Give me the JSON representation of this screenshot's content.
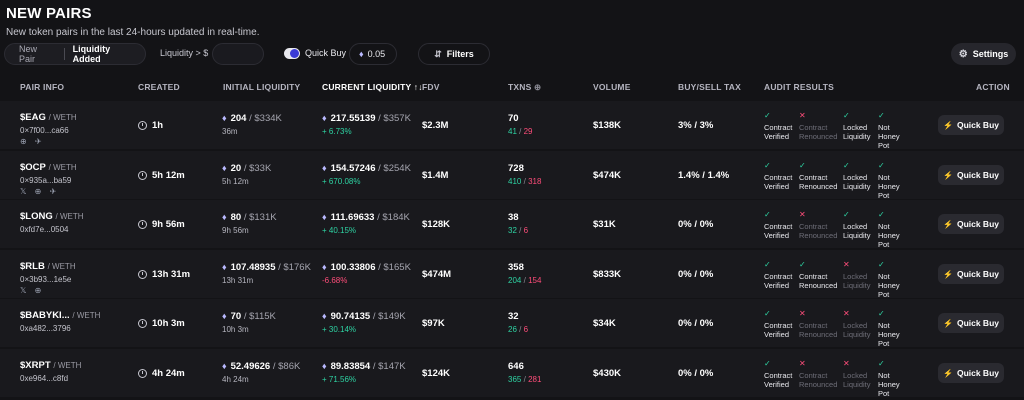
{
  "header": {
    "title": "NEW PAIRS",
    "subtitle": "New token pairs in the last 24-hours updated in real-time."
  },
  "toolbar": {
    "tab_new_pair": "New Pair",
    "tab_liquidity_added": "Liquidity Added",
    "liquidity_label": "Liquidity > $",
    "liquidity_value": "",
    "quick_buy_label": "Quick Buy",
    "quick_buy_amount": "0.05",
    "filters_label": "Filters",
    "settings_label": "Settings"
  },
  "columns": {
    "pair_info": "PAIR INFO",
    "created": "CREATED",
    "initial_liquidity": "INITIAL LIQUIDITY",
    "current_liquidity": "CURRENT LIQUIDITY",
    "fdv": "FDV",
    "txns": "TXNS",
    "volume": "VOLUME",
    "tax": "BUY/SELL TAX",
    "audit": "AUDIT RESULTS",
    "action": "ACTION"
  },
  "audit_labels": [
    "Contract Verified",
    "Contract Renounced",
    "Locked Liquidity",
    "Not Honey Pot"
  ],
  "quick_buy_button": "Quick Buy",
  "colors": {
    "positive": "#2ed3a3",
    "negative": "#ff4d7a",
    "accent": "#3b3bd6"
  },
  "rows": [
    {
      "symbol": "$EAG",
      "pair": "/ WETH",
      "address": "0×7f00...ca66",
      "socials": "⊕ ✈",
      "created": "1h",
      "init_eth": "204",
      "init_usd": "/ $334K",
      "init_sub": "36m",
      "cur_eth": "217.55139",
      "cur_usd": "/ $357K",
      "cur_change": "+ 6.73%",
      "cur_dir": "pos",
      "fdv": "$2.3M",
      "txns": "70",
      "buys": "41",
      "sells": "29",
      "volume": "$138K",
      "tax": "3% / 3%",
      "audit": [
        true,
        false,
        true,
        true
      ]
    },
    {
      "symbol": "$OCP",
      "pair": "/ WETH",
      "address": "0×935a...ba59",
      "socials": "𝕏 ⊕ ✈",
      "created": "5h 12m",
      "init_eth": "20",
      "init_usd": "/ $33K",
      "init_sub": "5h 12m",
      "cur_eth": "154.57246",
      "cur_usd": "/ $254K",
      "cur_change": "+ 670.08%",
      "cur_dir": "pos",
      "fdv": "$1.4M",
      "txns": "728",
      "buys": "410",
      "sells": "318",
      "volume": "$474K",
      "tax": "1.4% / 1.4%",
      "audit": [
        true,
        true,
        true,
        true
      ]
    },
    {
      "symbol": "$LONG",
      "pair": "/ WETH",
      "address": "0xfd7e...0504",
      "socials": "",
      "created": "9h 56m",
      "init_eth": "80",
      "init_usd": "/ $131K",
      "init_sub": "9h 56m",
      "cur_eth": "111.69633",
      "cur_usd": "/ $184K",
      "cur_change": "+ 40.15%",
      "cur_dir": "pos",
      "fdv": "$128K",
      "txns": "38",
      "buys": "32",
      "sells": "6",
      "volume": "$31K",
      "tax": "0% / 0%",
      "audit": [
        true,
        false,
        true,
        true
      ]
    },
    {
      "symbol": "$RLB",
      "pair": "/ WETH",
      "address": "0×3b93...1e5e",
      "socials": "𝕏 ⊕",
      "created": "13h 31m",
      "init_eth": "107.48935",
      "init_usd": "/ $176K",
      "init_sub": "13h 31m",
      "cur_eth": "100.33806",
      "cur_usd": "/ $165K",
      "cur_change": "-6.68%",
      "cur_dir": "neg",
      "fdv": "$474M",
      "txns": "358",
      "buys": "204",
      "sells": "154",
      "volume": "$833K",
      "tax": "0% / 0%",
      "audit": [
        true,
        true,
        false,
        true
      ]
    },
    {
      "symbol": "$BABYKI...",
      "pair": "/ WETH",
      "address": "0xa482...3796",
      "socials": "",
      "created": "10h 3m",
      "init_eth": "70",
      "init_usd": "/ $115K",
      "init_sub": "10h 3m",
      "cur_eth": "90.74135",
      "cur_usd": "/ $149K",
      "cur_change": "+ 30.14%",
      "cur_dir": "pos",
      "fdv": "$97K",
      "txns": "32",
      "buys": "26",
      "sells": "6",
      "volume": "$34K",
      "tax": "0% / 0%",
      "audit": [
        true,
        false,
        false,
        true
      ]
    },
    {
      "symbol": "$XRPT",
      "pair": "/ WETH",
      "address": "0xe964...c8fd",
      "socials": "",
      "created": "4h 24m",
      "init_eth": "52.49626",
      "init_usd": "/ $86K",
      "init_sub": "4h 24m",
      "cur_eth": "89.83854",
      "cur_usd": "/ $147K",
      "cur_change": "+ 71.56%",
      "cur_dir": "pos",
      "fdv": "$124K",
      "txns": "646",
      "buys": "365",
      "sells": "281",
      "volume": "$430K",
      "tax": "0% / 0%",
      "audit": [
        true,
        false,
        false,
        true
      ]
    }
  ]
}
